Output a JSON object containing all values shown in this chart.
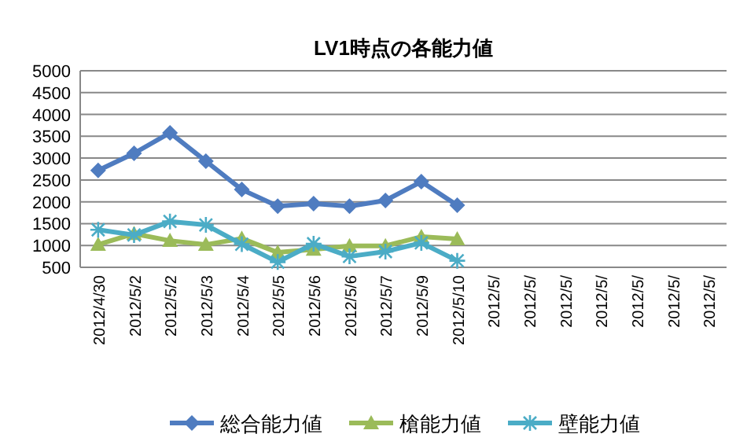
{
  "chart_data": {
    "type": "line",
    "title": "LV1時点の各能力値",
    "categories": [
      "2012/4/30",
      "2012/5/2",
      "2012/5/2",
      "2012/5/3",
      "2012/5/4",
      "2012/5/5",
      "2012/5/6",
      "2012/5/6",
      "2012/5/7",
      "2012/5/9",
      "2012/5/10",
      "2012/5/",
      "2012/5/",
      "2012/5/",
      "2012/5/",
      "2012/5/",
      "2012/5/",
      "2012/5/"
    ],
    "series": [
      {
        "name": "総合能力値",
        "color": "#4f7cc0",
        "marker": "diamond",
        "values": [
          2720,
          3110,
          3580,
          2930,
          2280,
          1900,
          1960,
          1900,
          2030,
          2460,
          1920,
          null,
          null,
          null,
          null,
          null,
          null,
          null
        ]
      },
      {
        "name": "槍能力値",
        "color": "#9bbb59",
        "marker": "triangle",
        "values": [
          1020,
          1270,
          1110,
          1020,
          1160,
          840,
          910,
          990,
          990,
          1200,
          1150,
          null,
          null,
          null,
          null,
          null,
          null,
          null
        ]
      },
      {
        "name": "壁能力値",
        "color": "#4bacc6",
        "marker": "cross",
        "values": [
          1360,
          1240,
          1550,
          1470,
          1030,
          620,
          1040,
          750,
          860,
          1060,
          650,
          null,
          null,
          null,
          null,
          null,
          null,
          null
        ]
      }
    ],
    "ylim": [
      500,
      5000
    ],
    "yticks": [
      500,
      1000,
      1500,
      2000,
      2500,
      3000,
      3500,
      4000,
      4500,
      5000
    ],
    "grid": "y",
    "legend": "bottom"
  }
}
